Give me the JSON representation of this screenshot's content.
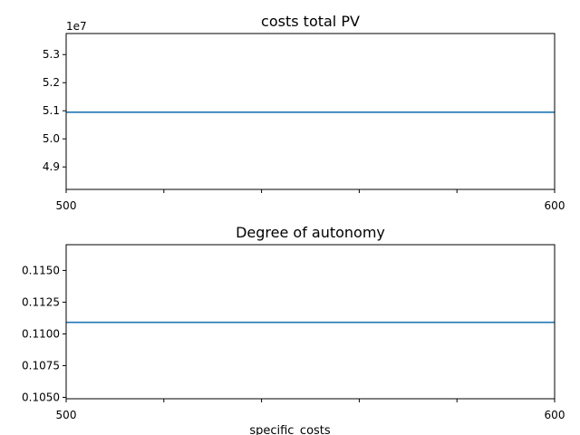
{
  "chart_data": [
    {
      "type": "line",
      "title": "costs total PV",
      "xlabel": "",
      "ylabel": "",
      "x_ticks": [
        "500",
        "",
        "",
        "",
        "",
        "600"
      ],
      "x_tick_values": [
        500,
        520,
        540,
        560,
        580,
        600
      ],
      "xlim": [
        500,
        600
      ],
      "y_offset_label": "1e7",
      "y_ticks": [
        "4.9",
        "5.0",
        "5.1",
        "5.2",
        "5.3"
      ],
      "y_tick_values": [
        4.9,
        5.0,
        5.1,
        5.2,
        5.3
      ],
      "ylim": [
        4.82,
        5.375
      ],
      "series": [
        {
          "x": [
            500,
            600
          ],
          "y": [
            5.095,
            5.095
          ],
          "color": "#1f77b4"
        }
      ]
    },
    {
      "type": "line",
      "title": "Degree of autonomy",
      "xlabel": "specific_costs",
      "ylabel": "",
      "x_ticks": [
        "500",
        "",
        "",
        "",
        "",
        "600"
      ],
      "x_tick_values": [
        500,
        520,
        540,
        560,
        580,
        600
      ],
      "xlim": [
        500,
        600
      ],
      "y_offset_label": "",
      "y_ticks": [
        "0.1050",
        "0.1075",
        "0.1100",
        "0.1125",
        "0.1150"
      ],
      "y_tick_values": [
        0.105,
        0.1075,
        0.11,
        0.1125,
        0.115
      ],
      "ylim": [
        0.10489,
        0.11703
      ],
      "series": [
        {
          "x": [
            500,
            600
          ],
          "y": [
            0.11091,
            0.11091
          ],
          "color": "#1f77b4"
        }
      ]
    }
  ]
}
